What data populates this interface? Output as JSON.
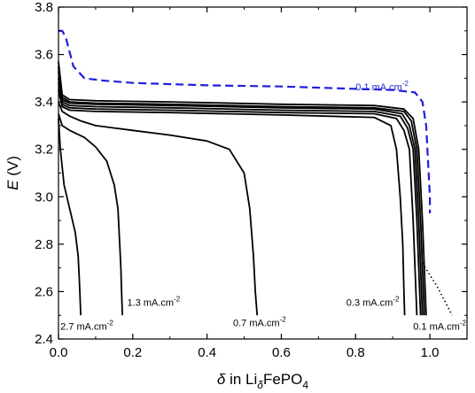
{
  "chart_data": {
    "type": "line",
    "xlabel": {
      "symbol": "δ",
      "text_mid": " in Li",
      "sub1": "δ",
      "text_end": "FePO",
      "sub2": "4"
    },
    "ylabel": {
      "italic": "E",
      "rest": " (V)"
    },
    "xlim": [
      0,
      1.1
    ],
    "ylim": [
      2.4,
      3.8
    ],
    "x_ticks": [
      "0.0",
      "0.2",
      "0.4",
      "0.6",
      "0.8",
      "1.0"
    ],
    "x_tick_values": [
      0,
      0.2,
      0.4,
      0.6,
      0.8,
      1.0
    ],
    "y_ticks": [
      "2.4",
      "2.6",
      "2.8",
      "3.0",
      "3.2",
      "3.4",
      "3.6",
      "3.8"
    ],
    "y_tick_values": [
      2.4,
      2.6,
      2.8,
      3.0,
      3.2,
      3.4,
      3.6,
      3.8
    ],
    "grid": false,
    "colors": {
      "black": "#000000",
      "blue": "#1f1fe0"
    },
    "series": [
      {
        "style": "dashed-blue",
        "x": [
          0,
          0.01,
          0.02,
          0.04,
          0.07,
          0.12,
          0.2,
          0.4,
          0.6,
          0.8,
          0.9,
          0.96,
          0.98,
          0.99,
          0.995,
          1.0,
          1.0
        ],
        "y": [
          3.7,
          3.7,
          3.67,
          3.55,
          3.5,
          3.49,
          3.48,
          3.47,
          3.465,
          3.455,
          3.45,
          3.44,
          3.4,
          3.3,
          3.15,
          3.0,
          2.93
        ]
      },
      {
        "style": "dotted-black",
        "x": [
          0.98,
          1.0,
          1.02,
          1.04,
          1.06
        ],
        "y": [
          2.72,
          2.67,
          2.62,
          2.56,
          2.5
        ]
      },
      {
        "style": "solid",
        "x": [
          0,
          0.01,
          0.03,
          0.1,
          0.3,
          0.6,
          0.85,
          0.93,
          0.955,
          0.97,
          0.98,
          0.985,
          0.99
        ],
        "y": [
          3.57,
          3.43,
          3.41,
          3.405,
          3.4,
          3.39,
          3.385,
          3.37,
          3.33,
          3.2,
          2.9,
          2.7,
          2.5
        ]
      },
      {
        "style": "solid",
        "x": [
          0,
          0.01,
          0.03,
          0.1,
          0.3,
          0.6,
          0.85,
          0.93,
          0.95,
          0.965,
          0.975,
          0.98,
          0.985
        ],
        "y": [
          3.55,
          3.42,
          3.4,
          3.395,
          3.39,
          3.38,
          3.375,
          3.36,
          3.32,
          3.2,
          2.9,
          2.7,
          2.5
        ]
      },
      {
        "style": "solid",
        "x": [
          0,
          0.01,
          0.03,
          0.1,
          0.3,
          0.6,
          0.85,
          0.925,
          0.945,
          0.96,
          0.97,
          0.975,
          0.98
        ],
        "y": [
          3.53,
          3.41,
          3.395,
          3.39,
          3.385,
          3.375,
          3.37,
          3.35,
          3.3,
          3.2,
          2.9,
          2.7,
          2.5
        ]
      },
      {
        "style": "solid",
        "x": [
          0,
          0.01,
          0.03,
          0.1,
          0.3,
          0.6,
          0.85,
          0.92,
          0.94,
          0.955,
          0.965,
          0.97,
          0.975
        ],
        "y": [
          3.5,
          3.4,
          3.385,
          3.38,
          3.375,
          3.365,
          3.36,
          3.34,
          3.29,
          3.2,
          2.9,
          2.7,
          2.5
        ]
      },
      {
        "style": "solid",
        "x": [
          0,
          0.01,
          0.03,
          0.1,
          0.3,
          0.6,
          0.85,
          0.91,
          0.93,
          0.945,
          0.955,
          0.96,
          0.965
        ],
        "y": [
          3.48,
          3.39,
          3.375,
          3.37,
          3.365,
          3.355,
          3.35,
          3.33,
          3.28,
          3.2,
          2.9,
          2.7,
          2.5
        ]
      },
      {
        "style": "solid",
        "x": [
          0,
          0.01,
          0.03,
          0.1,
          0.3,
          0.6,
          0.85,
          0.895,
          0.91,
          0.92,
          0.927,
          0.93,
          0.932
        ],
        "y": [
          3.45,
          3.38,
          3.365,
          3.36,
          3.355,
          3.345,
          3.335,
          3.3,
          3.2,
          3.0,
          2.8,
          2.6,
          2.5
        ]
      },
      {
        "style": "solid",
        "x": [
          0,
          0.01,
          0.03,
          0.06,
          0.1,
          0.2,
          0.3,
          0.4,
          0.46,
          0.5,
          0.515,
          0.525,
          0.53,
          0.535
        ],
        "y": [
          3.4,
          3.36,
          3.34,
          3.32,
          3.3,
          3.28,
          3.26,
          3.235,
          3.2,
          3.1,
          2.95,
          2.75,
          2.6,
          2.5
        ]
      },
      {
        "style": "solid",
        "x": [
          0,
          0.01,
          0.03,
          0.07,
          0.1,
          0.13,
          0.15,
          0.16,
          0.165,
          0.168,
          0.17,
          0.172
        ],
        "y": [
          3.35,
          3.3,
          3.28,
          3.25,
          3.21,
          3.15,
          3.05,
          2.95,
          2.8,
          2.7,
          2.6,
          2.5
        ]
      },
      {
        "style": "solid",
        "x": [
          0,
          0.005,
          0.015,
          0.03,
          0.045,
          0.053,
          0.056,
          0.058,
          0.06
        ],
        "y": [
          3.33,
          3.2,
          3.05,
          2.95,
          2.85,
          2.75,
          2.65,
          2.58,
          2.5
        ]
      }
    ],
    "annotations": [
      {
        "base": "0.1 mA.cm",
        "sup": "-2",
        "x": 0.8,
        "y": 3.45,
        "color": "blue"
      },
      {
        "base": "1.3 mA.cm",
        "sup": "-2",
        "x": 0.185,
        "y": 2.54,
        "color": "black"
      },
      {
        "base": "0.7 mA.cm",
        "sup": "-2",
        "x": 0.47,
        "y": 2.455,
        "color": "black"
      },
      {
        "base": "0.3 mA.cm",
        "sup": "-2",
        "x": 0.775,
        "y": 2.54,
        "color": "black"
      },
      {
        "base": "2.7 mA.cm",
        "sup": "-2",
        "x": 0.005,
        "y": 2.44,
        "color": "black"
      },
      {
        "base": "0.1 mA.cm",
        "sup": "-2",
        "x": 0.955,
        "y": 2.44,
        "color": "black"
      }
    ]
  }
}
